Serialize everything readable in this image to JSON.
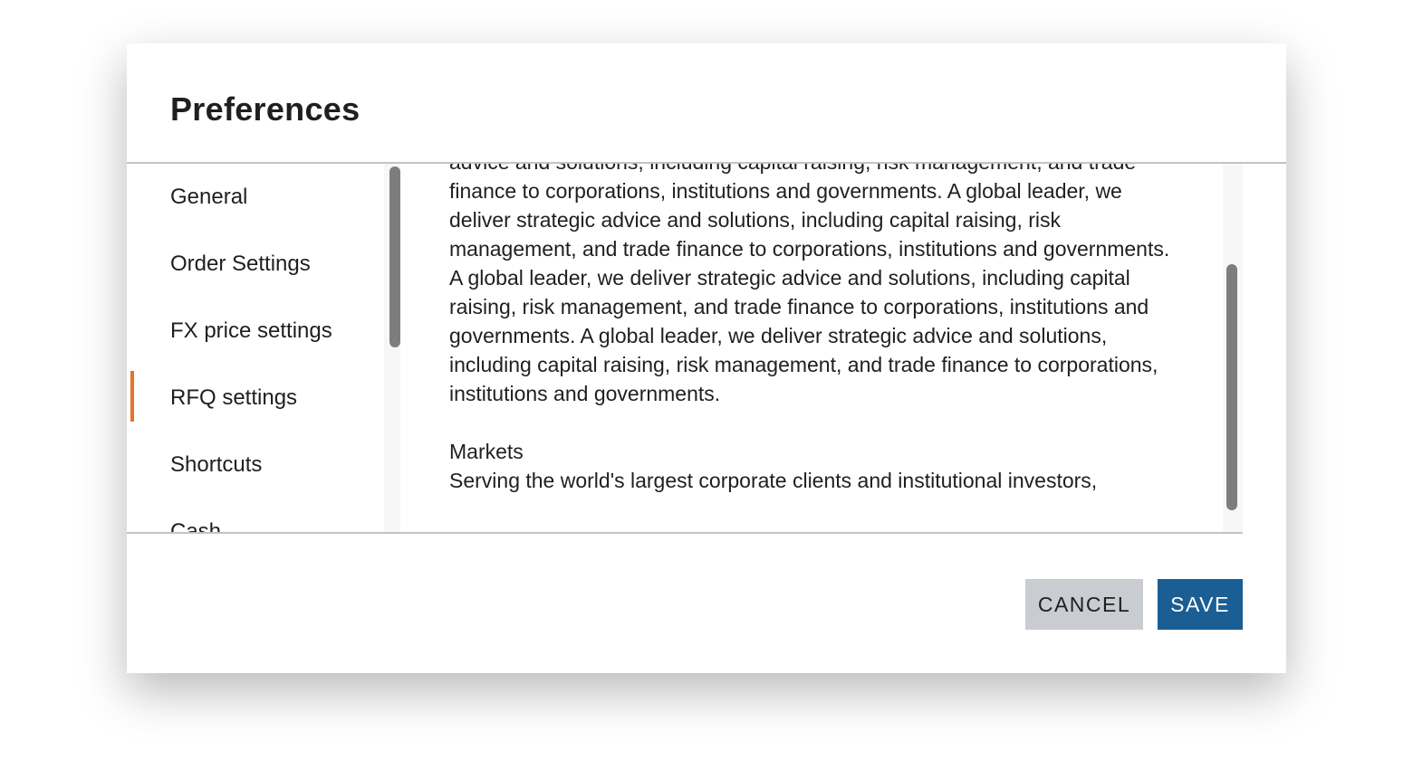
{
  "dialog": {
    "title": "Preferences",
    "sidebar": {
      "items": [
        {
          "label": "General"
        },
        {
          "label": "Order Settings"
        },
        {
          "label": "FX price settings"
        },
        {
          "label": "RFQ settings",
          "active": true
        },
        {
          "label": "Shortcuts"
        },
        {
          "label": "Cash"
        }
      ],
      "active_indicator_color": "#e8722a"
    },
    "content": {
      "intro_text": "advice and solutions, including capital raising, risk management, and trade finance to corporations, institutions and governments. A global leader, we deliver strategic advice and solutions, including capital raising, risk management, and trade finance to corporations, institutions and governments. A global leader, we deliver strategic advice and solutions, including capital raising, risk management, and trade finance to corporations, institutions and governments. A global leader, we deliver strategic advice and solutions, including capital raising, risk management, and trade finance to corporations, institutions and governments.",
      "markets_heading": "Markets",
      "markets_text": "Serving the world's largest corporate clients and institutional investors,"
    },
    "buttons": {
      "cancel": "CANCEL",
      "save": "SAVE",
      "save_color": "#1b5e93"
    }
  }
}
